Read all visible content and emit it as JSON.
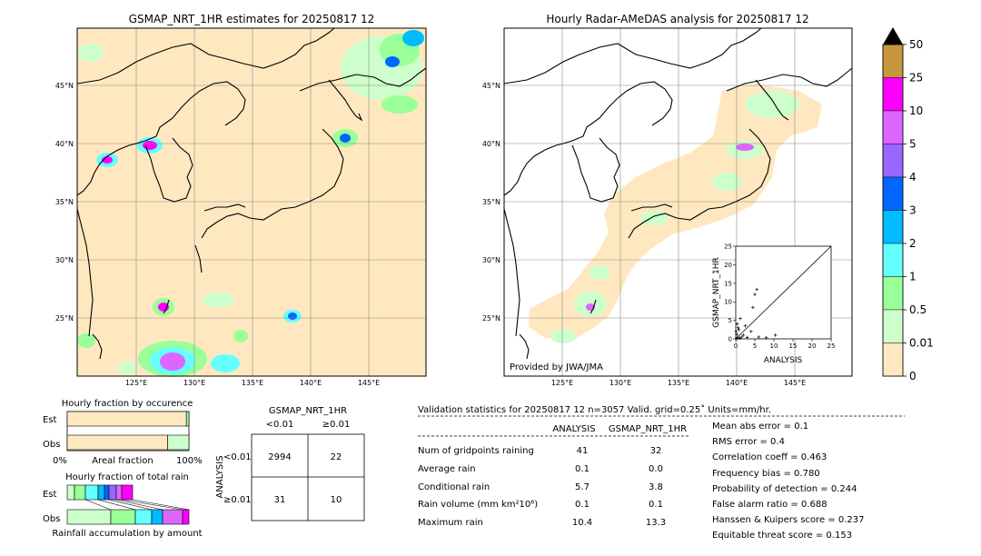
{
  "maps": {
    "left_title": "GSMAP_NRT_1HR estimates for 20250817 12",
    "right_title": "Hourly Radar-AMeDAS analysis for 20250817 12",
    "lat_labels": [
      "45°N",
      "40°N",
      "35°N",
      "30°N",
      "25°N"
    ],
    "lon_labels": [
      "125°E",
      "130°E",
      "135°E",
      "140°E",
      "145°E"
    ],
    "provider": "Provided by JWA/JMA"
  },
  "colorbar": {
    "labels": [
      "50",
      "25",
      "10",
      "5",
      "4",
      "3",
      "2",
      "1",
      "0.5",
      "0.01",
      "0"
    ],
    "colors": [
      "#c8963c",
      "#ff00ff",
      "#dd66ff",
      "#9966ff",
      "#0066ff",
      "#00bbff",
      "#66ffff",
      "#99ff99",
      "#ccffcc",
      "#ffe8c0"
    ]
  },
  "scatter": {
    "xlabel": "ANALYSIS",
    "ylabel": "GSMAP_NRT_1HR",
    "ticks": [
      "0",
      "5",
      "10",
      "15",
      "20",
      "25"
    ]
  },
  "chart_data": {
    "type": "scatter",
    "xlabel": "ANALYSIS",
    "ylabel": "GSMAP_NRT_1HR",
    "xlim": [
      0,
      25
    ],
    "ylim": [
      0,
      25
    ],
    "points": [
      {
        "x": 0.2,
        "y": 0.1
      },
      {
        "x": 0.5,
        "y": 0.3
      },
      {
        "x": 1.0,
        "y": 0.2
      },
      {
        "x": 0.3,
        "y": 1.2
      },
      {
        "x": 0.8,
        "y": 2.5
      },
      {
        "x": 1.5,
        "y": 0.5
      },
      {
        "x": 0.6,
        "y": 3.0
      },
      {
        "x": 2.0,
        "y": 1.0
      },
      {
        "x": 3.0,
        "y": 0.4
      },
      {
        "x": 0.4,
        "y": 4.0
      },
      {
        "x": 4.5,
        "y": 8.5
      },
      {
        "x": 5.0,
        "y": 12.0
      },
      {
        "x": 5.5,
        "y": 13.3
      },
      {
        "x": 4.0,
        "y": 2.0
      },
      {
        "x": 6.0,
        "y": 0.5
      },
      {
        "x": 8.0,
        "y": 0.3
      },
      {
        "x": 10.4,
        "y": 1.0
      },
      {
        "x": 1.2,
        "y": 5.5
      },
      {
        "x": 2.5,
        "y": 3.5
      },
      {
        "x": 0.1,
        "y": 2.0
      }
    ]
  },
  "occurrence": {
    "title": "Hourly fraction by occurence",
    "est": "Est",
    "obs": "Obs",
    "x0": "0%",
    "xmid": "Areal fraction",
    "x100": "100%",
    "est_dry": 0.979,
    "obs_dry": 0.825
  },
  "total_rain": {
    "title": "Hourly fraction of total rain",
    "est": "Est",
    "obs": "Obs",
    "xlabel": "Rainfall accumulation by amount"
  },
  "contingency": {
    "title": "GSMAP_NRT_1HR",
    "col_lt": "<0.01",
    "col_ge": "≥0.01",
    "row_label": "ANALYSIS",
    "row_lt": "<0.01",
    "row_ge": "≥0.01",
    "a": "2994",
    "b": "22",
    "c": "31",
    "d": "10"
  },
  "validation": {
    "header": "Validation statistics for 20250817 12  n=3057 Valid. grid=0.25˚ Units=mm/hr.",
    "col_analysis": "ANALYSIS",
    "col_gsmap": "GSMAP_NRT_1HR",
    "rows": [
      {
        "label": "Num of gridpoints raining",
        "analysis": "41",
        "gsmap": "32"
      },
      {
        "label": "Average rain",
        "analysis": "0.1",
        "gsmap": "0.0"
      },
      {
        "label": "Conditional rain",
        "analysis": "5.7",
        "gsmap": "3.8"
      },
      {
        "label": "Rain volume (mm km²10⁶)",
        "analysis": "0.1",
        "gsmap": "0.1"
      },
      {
        "label": "Maximum rain",
        "analysis": "10.4",
        "gsmap": "13.3"
      }
    ],
    "scores": [
      "Mean abs error =    0.1",
      "RMS error =    0.4",
      "Correlation coeff =  0.463",
      "Frequency bias =  0.780",
      "Probability of detection =  0.244",
      "False alarm ratio =  0.688",
      "Hanssen & Kuipers score =  0.237",
      "Equitable threat score =  0.153"
    ]
  }
}
